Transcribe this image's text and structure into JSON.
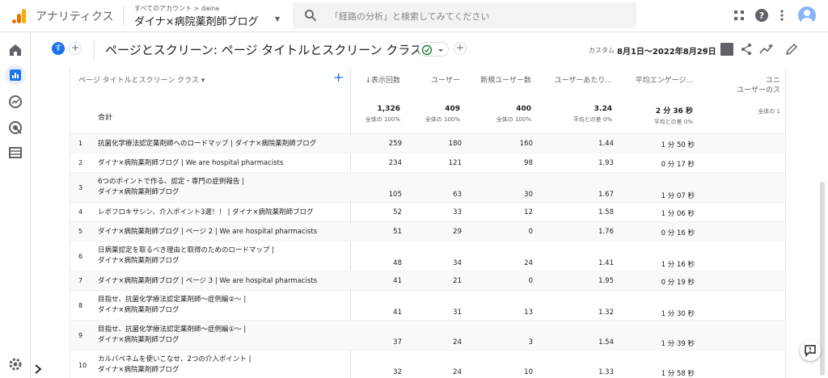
{
  "topbar": {
    "app_name": "アナリティクス",
    "account_crumb": "すべてのアカウント > daina",
    "account_name": "ダイナ×病院薬剤師ブログ",
    "search_placeholder": "「経路の分析」と検索してみてください"
  },
  "header": {
    "segment_chip": "す",
    "title": "ページとスクリーン: ページ タイトルとスクリーン クラス",
    "date_label": "カスタム",
    "date_range": "8月1日～2022年8月29日"
  },
  "table": {
    "dimension_header": "ページ タイトルとスクリーン クラス",
    "columns": [
      {
        "label": "↓表示回数",
        "right": 410
      },
      {
        "label": "ユーザー",
        "right": 484
      },
      {
        "label": "新規ユーザー数",
        "right": 572
      },
      {
        "label": "ユーザーあたり...",
        "right": 672
      },
      {
        "label": "平均エンゲージ...",
        "right": 772
      },
      {
        "label": "ユニ",
        "right": 880
      }
    ],
    "col_header_extra": "ユーザーのス",
    "total_label": "合計",
    "totals": [
      {
        "value": "1,326",
        "sub": "全体の 100%"
      },
      {
        "value": "409",
        "sub": "全体の 100%"
      },
      {
        "value": "400",
        "sub": "全体の 100%"
      },
      {
        "value": "3.24",
        "sub": "平均との差 0%"
      },
      {
        "value": "2 分 36 秒",
        "sub": "平均との差 0%"
      },
      {
        "value": "",
        "sub": "全体の 1"
      }
    ],
    "rows": [
      {
        "num": "1",
        "title": [
          "抗菌化学療法認定薬剤師へのロードマップ | ダイナ×病院薬剤師ブログ"
        ],
        "values": [
          "259",
          "180",
          "160",
          "1.44",
          "1 分 50 秒"
        ]
      },
      {
        "num": "2",
        "title": [
          "ダイナ×病院薬剤師ブログ | We are hospital pharmacists"
        ],
        "values": [
          "234",
          "121",
          "98",
          "1.93",
          "0 分 17 秒"
        ]
      },
      {
        "num": "3",
        "title": [
          "6つのポイントで作る、認定・専門の症例報告 |",
          "ダイナ×病院薬剤師ブログ"
        ],
        "values": [
          "105",
          "63",
          "30",
          "1.67",
          "1 分 07 秒"
        ]
      },
      {
        "num": "4",
        "title": [
          "レボフロキサシン、介入ポイント3選！！ | ダイナ×病院薬剤師ブログ"
        ],
        "values": [
          "52",
          "33",
          "12",
          "1.58",
          "1 分 06 秒"
        ]
      },
      {
        "num": "5",
        "title": [
          "ダイナ×病院薬剤師ブログ | ページ 2 | We are hospital pharmacists"
        ],
        "values": [
          "51",
          "29",
          "0",
          "1.76",
          "0 分 16 秒"
        ]
      },
      {
        "num": "6",
        "title": [
          "日病薬認定を取るべき理由と取得のためのロードマップ |",
          "ダイナ×病院薬剤師ブログ"
        ],
        "values": [
          "48",
          "34",
          "24",
          "1.41",
          "1 分 16 秒"
        ]
      },
      {
        "num": "7",
        "title": [
          "ダイナ×病院薬剤師ブログ | ページ 3 | We are hospital pharmacists"
        ],
        "values": [
          "41",
          "21",
          "0",
          "1.95",
          "0 分 19 秒"
        ]
      },
      {
        "num": "8",
        "title": [
          "目指せ、抗菌化学療法認定薬剤師～症例編②～ |",
          "ダイナ×病院薬剤師ブログ"
        ],
        "values": [
          "41",
          "31",
          "13",
          "1.32",
          "1 分 30 秒"
        ]
      },
      {
        "num": "9",
        "title": [
          "目指せ、抗菌化学療法認定薬剤師～症例編①～ |",
          "ダイナ×病院薬剤師ブログ"
        ],
        "values": [
          "37",
          "24",
          "3",
          "1.54",
          "1 分 39 秒"
        ]
      },
      {
        "num": "10",
        "title": [
          "カルバペネムを使いこなせ、2つの介入ポイント |",
          "ダイナ×病院薬剤師ブログ"
        ],
        "values": [
          "32",
          "24",
          "10",
          "1.33",
          "1 分 58 秒"
        ]
      }
    ]
  }
}
